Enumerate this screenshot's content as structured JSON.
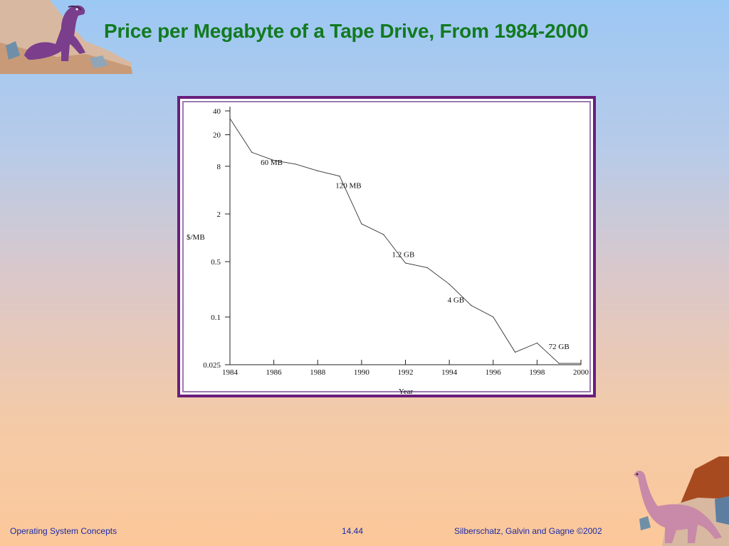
{
  "slide": {
    "title": "Price per Megabyte of a Tape Drive, From 1984-2000",
    "footer_left": "Operating System Concepts",
    "footer_center": "14.44",
    "footer_right": "Silberschatz, Galvin and  Gagne ©2002"
  },
  "colors": {
    "title": "#127a20",
    "footer_text": "#1a2aa8",
    "chart_border": "#6a1e7c"
  },
  "chart_data": {
    "type": "line",
    "title": "",
    "xlabel": "Year",
    "ylabel": "$/MB",
    "yscale": "log",
    "xlim": [
      1984,
      2000
    ],
    "ylim": [
      0.025,
      40
    ],
    "x_ticks": [
      1984,
      1986,
      1988,
      1990,
      1992,
      1994,
      1996,
      1998,
      2000
    ],
    "y_ticks": [
      {
        "value": 40,
        "label": "40"
      },
      {
        "value": 20,
        "label": "20"
      },
      {
        "value": 8,
        "label": "8"
      },
      {
        "value": 2,
        "label": "2"
      },
      {
        "value": 0.5,
        "label": "0.5"
      },
      {
        "value": 0.1,
        "label": "0.1"
      },
      {
        "value": 0.025,
        "label": "0.025"
      }
    ],
    "grid": false,
    "series": [
      {
        "points": [
          {
            "x": 1984,
            "y": 32
          },
          {
            "x": 1985,
            "y": 12
          },
          {
            "x": 1986,
            "y": 9.5
          },
          {
            "x": 1987,
            "y": 8.5
          },
          {
            "x": 1988,
            "y": 7
          },
          {
            "x": 1989,
            "y": 6
          },
          {
            "x": 1990,
            "y": 1.5
          },
          {
            "x": 1991,
            "y": 1.1
          },
          {
            "x": 1992,
            "y": 0.48
          },
          {
            "x": 1993,
            "y": 0.42
          },
          {
            "x": 1994,
            "y": 0.26
          },
          {
            "x": 1995,
            "y": 0.14
          },
          {
            "x": 1996,
            "y": 0.1
          },
          {
            "x": 1997,
            "y": 0.036
          },
          {
            "x": 1998,
            "y": 0.047
          },
          {
            "x": 1999,
            "y": 0.026
          },
          {
            "x": 2000,
            "y": 0.026
          }
        ]
      }
    ],
    "annotations": [
      {
        "text": "60 MB",
        "x": 1985.9,
        "y": 9.0
      },
      {
        "text": "120 MB",
        "x": 1989.4,
        "y": 4.6
      },
      {
        "text": "1.2 GB",
        "x": 1991.9,
        "y": 0.62
      },
      {
        "text": "4 GB",
        "x": 1994.3,
        "y": 0.165
      },
      {
        "text": "72 GB",
        "x": 1999.0,
        "y": 0.043
      }
    ]
  }
}
